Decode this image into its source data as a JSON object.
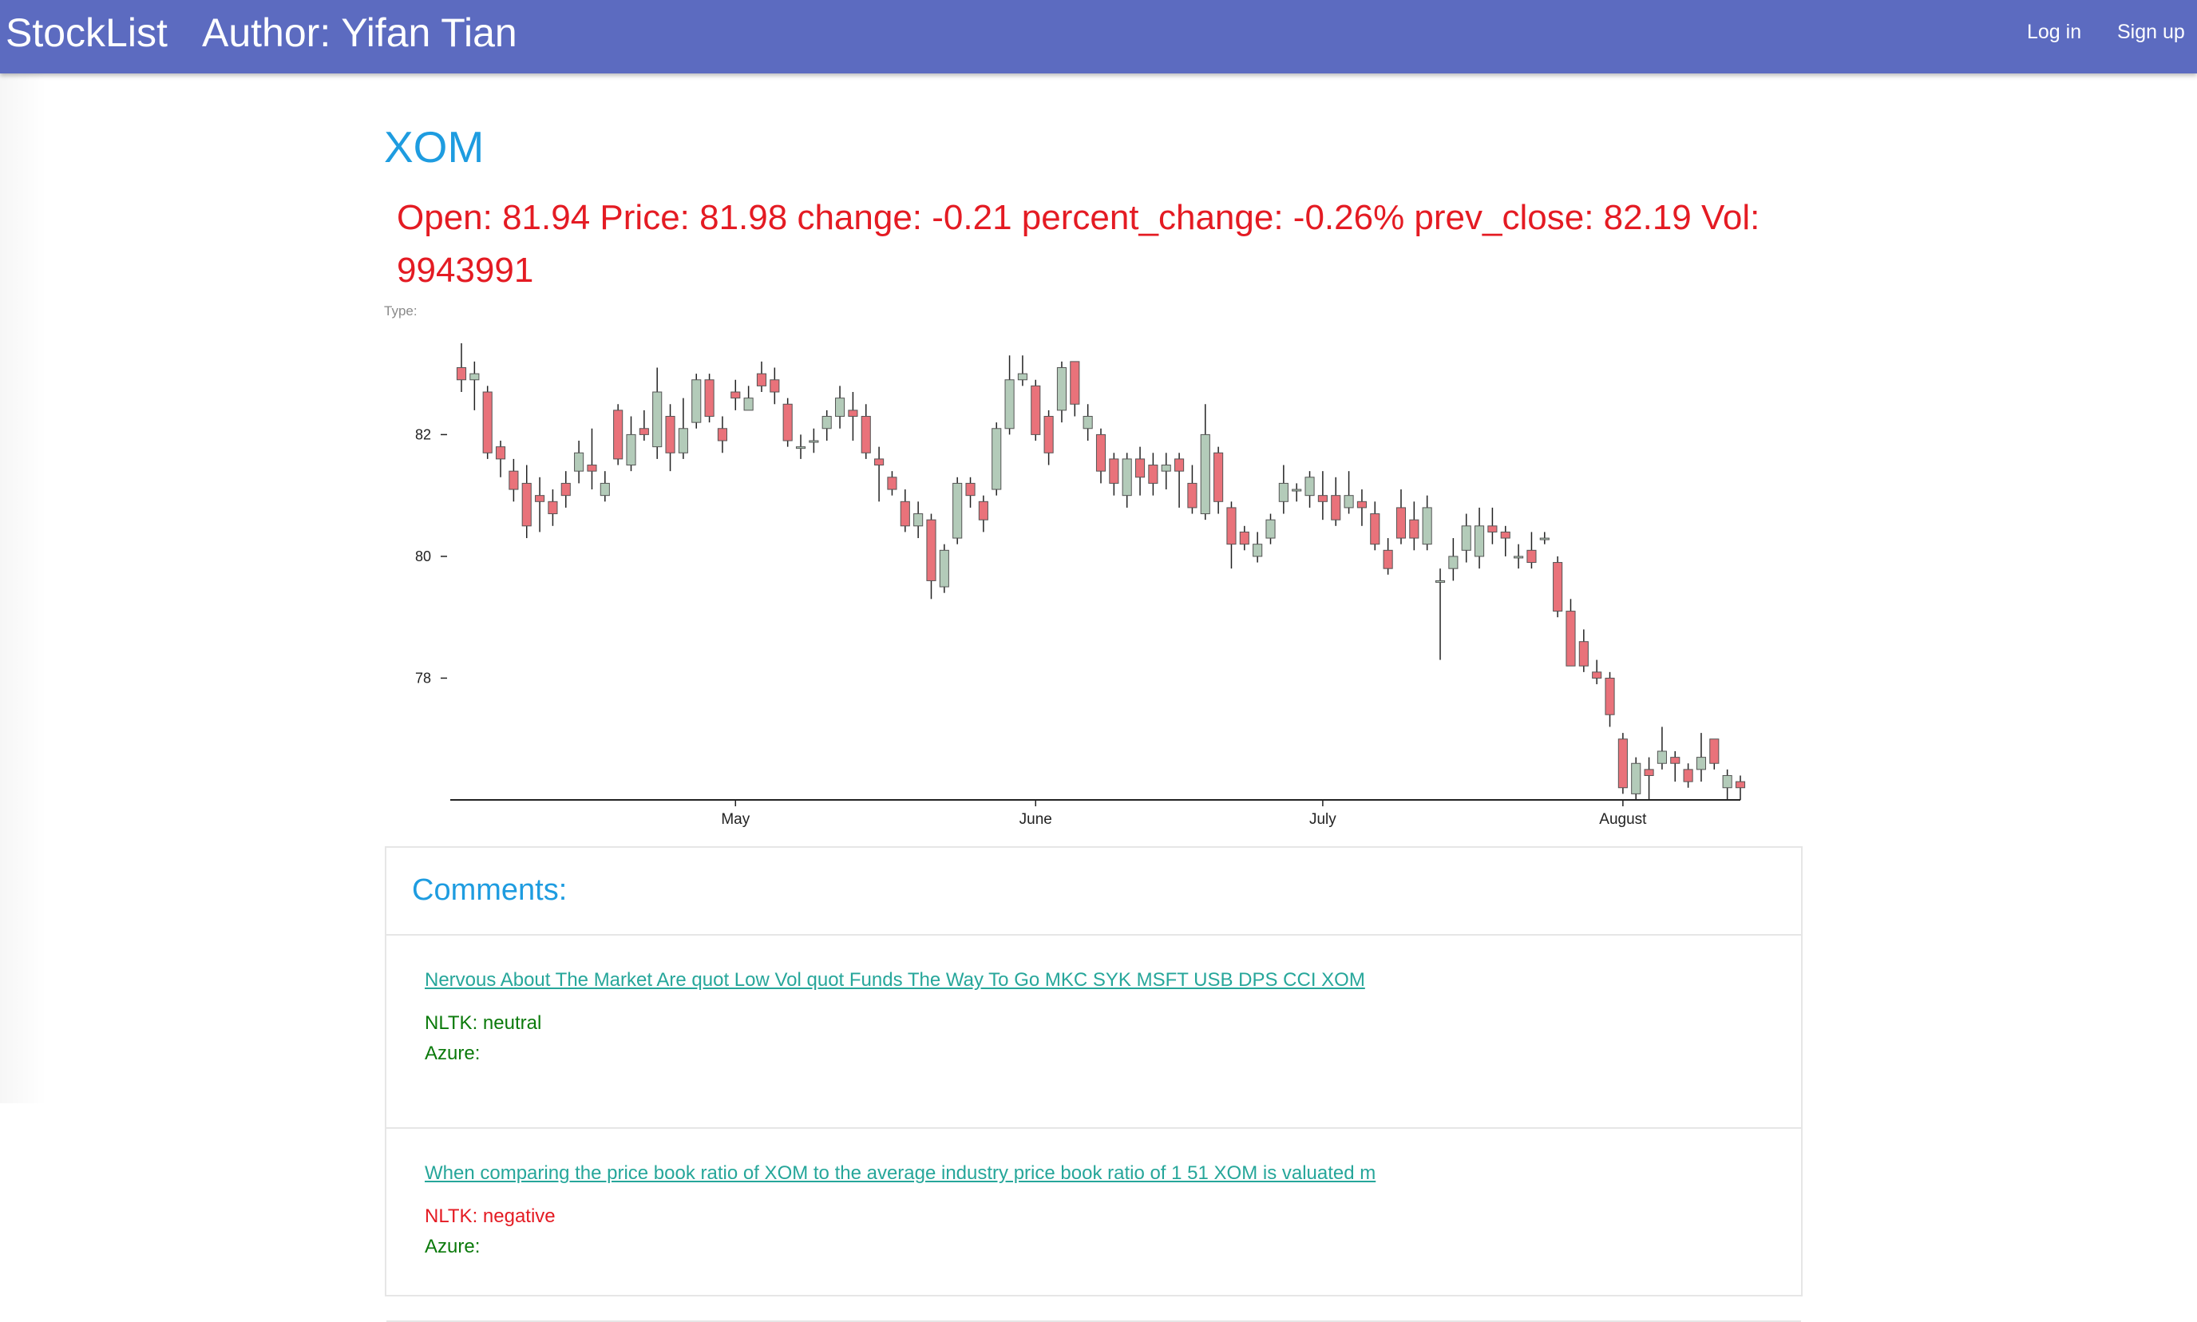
{
  "navbar": {
    "brand": "StockList",
    "author": "Author: Yifan Tian",
    "login": "Log in",
    "signup": "Sign up"
  },
  "stock": {
    "symbol": "XOM",
    "stats": "Open: 81.94 Price: 81.98 change: -0.21 percent_change: -0.26% prev_close: 82.19 Vol: 9943991",
    "type_label": "Type:"
  },
  "colors": {
    "up": "#b3cbb9",
    "down": "#e9727a",
    "nav": "#5c6bc0",
    "accent": "#1e9ce0",
    "price_text": "#e41b23",
    "comment_text": "#26a69a",
    "nltk_neutral": "#0b7a0b",
    "nltk_negative": "#e41b23"
  },
  "chart_data": {
    "type": "candlestick",
    "ylim": [
      76.0,
      83.5
    ],
    "yticks": [
      {
        "label": "82",
        "value": 82
      },
      {
        "label": "80",
        "value": 80
      },
      {
        "label": "78",
        "value": 78
      }
    ],
    "xticks": [
      {
        "label": "May",
        "index": 21
      },
      {
        "label": "June",
        "index": 44
      },
      {
        "label": "July",
        "index": 66
      },
      {
        "label": "August",
        "index": 89
      }
    ],
    "candles": [
      {
        "o": 83.1,
        "c": 82.9,
        "h": 83.5,
        "l": 82.7
      },
      {
        "o": 82.9,
        "c": 83.0,
        "h": 83.2,
        "l": 82.4
      },
      {
        "o": 82.7,
        "c": 81.7,
        "h": 82.8,
        "l": 81.6
      },
      {
        "o": 81.8,
        "c": 81.6,
        "h": 81.9,
        "l": 81.3
      },
      {
        "o": 81.4,
        "c": 81.1,
        "h": 81.6,
        "l": 80.9
      },
      {
        "o": 81.2,
        "c": 80.5,
        "h": 81.5,
        "l": 80.3
      },
      {
        "o": 81.0,
        "c": 80.9,
        "h": 81.3,
        "l": 80.4
      },
      {
        "o": 80.9,
        "c": 80.7,
        "h": 81.1,
        "l": 80.5
      },
      {
        "o": 81.2,
        "c": 81.0,
        "h": 81.4,
        "l": 80.8
      },
      {
        "o": 81.4,
        "c": 81.7,
        "h": 81.9,
        "l": 81.2
      },
      {
        "o": 81.5,
        "c": 81.4,
        "h": 82.1,
        "l": 81.1
      },
      {
        "o": 81.0,
        "c": 81.2,
        "h": 81.4,
        "l": 80.9
      },
      {
        "o": 82.4,
        "c": 81.6,
        "h": 82.5,
        "l": 81.5
      },
      {
        "o": 81.5,
        "c": 82.0,
        "h": 82.3,
        "l": 81.4
      },
      {
        "o": 82.1,
        "c": 82.0,
        "h": 82.4,
        "l": 81.9
      },
      {
        "o": 81.8,
        "c": 82.7,
        "h": 83.1,
        "l": 81.6
      },
      {
        "o": 82.3,
        "c": 81.7,
        "h": 82.5,
        "l": 81.4
      },
      {
        "o": 81.7,
        "c": 82.1,
        "h": 82.6,
        "l": 81.6
      },
      {
        "o": 82.2,
        "c": 82.9,
        "h": 83.0,
        "l": 82.1
      },
      {
        "o": 82.9,
        "c": 82.3,
        "h": 83.0,
        "l": 82.2
      },
      {
        "o": 82.1,
        "c": 81.9,
        "h": 82.3,
        "l": 81.7
      },
      {
        "o": 82.7,
        "c": 82.6,
        "h": 82.9,
        "l": 82.4
      },
      {
        "o": 82.4,
        "c": 82.6,
        "h": 82.8,
        "l": 82.4
      },
      {
        "o": 83.0,
        "c": 82.8,
        "h": 83.2,
        "l": 82.7
      },
      {
        "o": 82.9,
        "c": 82.7,
        "h": 83.1,
        "l": 82.5
      },
      {
        "o": 82.5,
        "c": 81.9,
        "h": 82.6,
        "l": 81.8
      },
      {
        "o": 81.8,
        "c": 81.8,
        "h": 82.0,
        "l": 81.6
      },
      {
        "o": 81.9,
        "c": 81.9,
        "h": 82.1,
        "l": 81.7
      },
      {
        "o": 82.1,
        "c": 82.3,
        "h": 82.4,
        "l": 81.9
      },
      {
        "o": 82.3,
        "c": 82.6,
        "h": 82.8,
        "l": 82.1
      },
      {
        "o": 82.4,
        "c": 82.3,
        "h": 82.7,
        "l": 81.9
      },
      {
        "o": 82.3,
        "c": 81.7,
        "h": 82.5,
        "l": 81.6
      },
      {
        "o": 81.6,
        "c": 81.5,
        "h": 81.8,
        "l": 80.9
      },
      {
        "o": 81.3,
        "c": 81.1,
        "h": 81.4,
        "l": 81.0
      },
      {
        "o": 80.9,
        "c": 80.5,
        "h": 81.1,
        "l": 80.4
      },
      {
        "o": 80.5,
        "c": 80.7,
        "h": 80.9,
        "l": 80.3
      },
      {
        "o": 80.6,
        "c": 79.6,
        "h": 80.7,
        "l": 79.3
      },
      {
        "o": 79.5,
        "c": 80.1,
        "h": 80.2,
        "l": 79.4
      },
      {
        "o": 80.3,
        "c": 81.2,
        "h": 81.3,
        "l": 80.2
      },
      {
        "o": 81.2,
        "c": 81.0,
        "h": 81.3,
        "l": 80.8
      },
      {
        "o": 80.9,
        "c": 80.6,
        "h": 81.0,
        "l": 80.4
      },
      {
        "o": 81.1,
        "c": 82.1,
        "h": 82.2,
        "l": 81.0
      },
      {
        "o": 82.1,
        "c": 82.9,
        "h": 83.3,
        "l": 82.0
      },
      {
        "o": 82.9,
        "c": 83.0,
        "h": 83.3,
        "l": 82.8
      },
      {
        "o": 82.8,
        "c": 82.0,
        "h": 82.9,
        "l": 81.9
      },
      {
        "o": 82.3,
        "c": 81.7,
        "h": 82.4,
        "l": 81.5
      },
      {
        "o": 82.4,
        "c": 83.1,
        "h": 83.2,
        "l": 82.2
      },
      {
        "o": 83.2,
        "c": 82.5,
        "h": 83.2,
        "l": 82.3
      },
      {
        "o": 82.1,
        "c": 82.3,
        "h": 82.5,
        "l": 81.9
      },
      {
        "o": 82.0,
        "c": 81.4,
        "h": 82.1,
        "l": 81.2
      },
      {
        "o": 81.6,
        "c": 81.2,
        "h": 81.7,
        "l": 81.0
      },
      {
        "o": 81.0,
        "c": 81.6,
        "h": 81.7,
        "l": 80.8
      },
      {
        "o": 81.6,
        "c": 81.3,
        "h": 81.8,
        "l": 81.0
      },
      {
        "o": 81.5,
        "c": 81.2,
        "h": 81.7,
        "l": 81.0
      },
      {
        "o": 81.4,
        "c": 81.5,
        "h": 81.7,
        "l": 81.1
      },
      {
        "o": 81.6,
        "c": 81.4,
        "h": 81.7,
        "l": 80.8
      },
      {
        "o": 81.2,
        "c": 80.8,
        "h": 81.5,
        "l": 80.7
      },
      {
        "o": 80.7,
        "c": 82.0,
        "h": 82.5,
        "l": 80.6
      },
      {
        "o": 81.7,
        "c": 80.9,
        "h": 81.8,
        "l": 80.7
      },
      {
        "o": 80.8,
        "c": 80.2,
        "h": 80.9,
        "l": 79.8
      },
      {
        "o": 80.4,
        "c": 80.2,
        "h": 80.5,
        "l": 80.1
      },
      {
        "o": 80.0,
        "c": 80.2,
        "h": 80.4,
        "l": 79.9
      },
      {
        "o": 80.3,
        "c": 80.6,
        "h": 80.7,
        "l": 80.2
      },
      {
        "o": 80.9,
        "c": 81.2,
        "h": 81.5,
        "l": 80.7
      },
      {
        "o": 81.1,
        "c": 81.1,
        "h": 81.2,
        "l": 80.9
      },
      {
        "o": 81.0,
        "c": 81.3,
        "h": 81.4,
        "l": 80.8
      },
      {
        "o": 81.0,
        "c": 80.9,
        "h": 81.4,
        "l": 80.6
      },
      {
        "o": 81.0,
        "c": 80.6,
        "h": 81.3,
        "l": 80.5
      },
      {
        "o": 80.8,
        "c": 81.0,
        "h": 81.4,
        "l": 80.7
      },
      {
        "o": 80.9,
        "c": 80.8,
        "h": 81.1,
        "l": 80.5
      },
      {
        "o": 80.7,
        "c": 80.2,
        "h": 80.9,
        "l": 80.1
      },
      {
        "o": 80.1,
        "c": 79.8,
        "h": 80.3,
        "l": 79.7
      },
      {
        "o": 80.8,
        "c": 80.3,
        "h": 81.1,
        "l": 80.2
      },
      {
        "o": 80.6,
        "c": 80.3,
        "h": 80.9,
        "l": 80.1
      },
      {
        "o": 80.2,
        "c": 80.8,
        "h": 81.0,
        "l": 80.1
      },
      {
        "o": 79.6,
        "c": 79.6,
        "h": 79.8,
        "l": 78.3
      },
      {
        "o": 79.8,
        "c": 80.0,
        "h": 80.3,
        "l": 79.6
      },
      {
        "o": 80.1,
        "c": 80.5,
        "h": 80.7,
        "l": 79.9
      },
      {
        "o": 80.0,
        "c": 80.5,
        "h": 80.8,
        "l": 79.8
      },
      {
        "o": 80.5,
        "c": 80.4,
        "h": 80.8,
        "l": 80.2
      },
      {
        "o": 80.4,
        "c": 80.3,
        "h": 80.5,
        "l": 80.0
      },
      {
        "o": 80.0,
        "c": 80.0,
        "h": 80.2,
        "l": 79.8
      },
      {
        "o": 80.1,
        "c": 79.9,
        "h": 80.4,
        "l": 79.8
      },
      {
        "o": 80.3,
        "c": 80.3,
        "h": 80.4,
        "l": 80.2
      },
      {
        "o": 79.9,
        "c": 79.1,
        "h": 80.0,
        "l": 79.0
      },
      {
        "o": 79.1,
        "c": 78.2,
        "h": 79.3,
        "l": 78.2
      },
      {
        "o": 78.6,
        "c": 78.2,
        "h": 78.8,
        "l": 78.1
      },
      {
        "o": 78.1,
        "c": 78.0,
        "h": 78.3,
        "l": 77.9
      },
      {
        "o": 78.0,
        "c": 77.4,
        "h": 78.1,
        "l": 77.2
      },
      {
        "o": 77.0,
        "c": 76.2,
        "h": 77.1,
        "l": 76.1
      },
      {
        "o": 76.1,
        "c": 76.6,
        "h": 76.7,
        "l": 76.0
      },
      {
        "o": 76.5,
        "c": 76.4,
        "h": 76.7,
        "l": 76.0
      },
      {
        "o": 76.6,
        "c": 76.8,
        "h": 77.2,
        "l": 76.5
      },
      {
        "o": 76.7,
        "c": 76.6,
        "h": 76.8,
        "l": 76.3
      },
      {
        "o": 76.5,
        "c": 76.3,
        "h": 76.6,
        "l": 76.2
      },
      {
        "o": 76.5,
        "c": 76.7,
        "h": 77.1,
        "l": 76.3
      },
      {
        "o": 77.0,
        "c": 76.6,
        "h": 77.0,
        "l": 76.5
      },
      {
        "o": 76.2,
        "c": 76.4,
        "h": 76.5,
        "l": 76.0
      },
      {
        "o": 76.3,
        "c": 76.2,
        "h": 76.4,
        "l": 76.0
      }
    ]
  },
  "comments": {
    "title": "Comments:",
    "items": [
      {
        "text": "Nervous About The Market Are quot Low Vol quot Funds The Way To Go MKC SYK MSFT USB DPS CCI XOM",
        "nltk": "NLTK: neutral",
        "azure": "Azure:"
      },
      {
        "text": "When comparing the price book ratio of XOM to the average industry price book ratio of 1 51 XOM is valuated m",
        "nltk": "NLTK: negative",
        "azure": "Azure:"
      }
    ]
  }
}
